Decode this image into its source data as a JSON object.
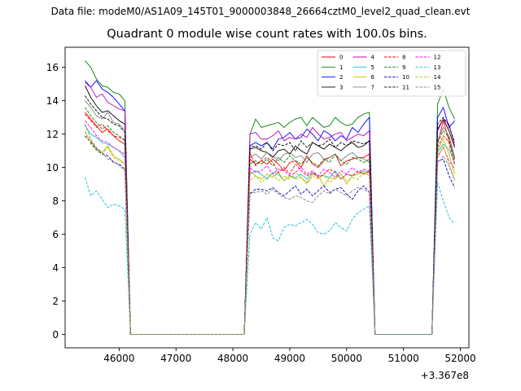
{
  "header": {
    "suptitle": "Data file: modeM0/AS1A09_145T01_9000003848_26664cztM0_level2_quad_clean.evt"
  },
  "chart_data": {
    "type": "line",
    "title": "Quadrant 0 module wise count rates with 100.0s bins.",
    "xlabel": "",
    "ylabel": "",
    "x_offset_label": "+3.367e8",
    "xlim": [
      45050,
      52150
    ],
    "ylim": [
      -0.8,
      17.2
    ],
    "xticks": [
      46000,
      47000,
      48000,
      49000,
      50000,
      51000,
      52000
    ],
    "yticks": [
      0,
      2,
      4,
      6,
      8,
      10,
      12,
      14,
      16
    ],
    "grid": false,
    "legend": {
      "placement": "top-right",
      "columns": 4
    },
    "segments": [
      {
        "x0": 45400,
        "x1": 46100
      },
      {
        "x0": 48300,
        "x1": 50400
      },
      {
        "x0": 51600,
        "x1": 51900
      }
    ],
    "gap_x": [
      46200,
      46300,
      46400,
      46500,
      46600,
      46700,
      46800,
      46900,
      47000,
      47100,
      47200,
      47300,
      47400,
      47500,
      47600,
      47700,
      47800,
      47900,
      48000,
      48100,
      48200,
      50500,
      50600,
      50700,
      50800,
      50900,
      51000,
      51100,
      51200,
      51300,
      51400,
      51500
    ],
    "series": [
      {
        "name": "0",
        "color": "#ff0000",
        "dash": "solid",
        "seg_values": [
          [
            13.3,
            12.9,
            12.5,
            12.1,
            12.3,
            11.9,
            11.6,
            11.4
          ],
          [
            10.5,
            10.2,
            10.4,
            10.2,
            10.5,
            10.2,
            9.8,
            10.3,
            10.4,
            10.0,
            10.7,
            10.2,
            10.0,
            10.4,
            10.6,
            10.8,
            10.1,
            10.4,
            10.5,
            10.6,
            10.6,
            10.8
          ],
          [
            11.4,
            12.8,
            11.6,
            10.5
          ]
        ]
      },
      {
        "name": "1",
        "color": "#008000",
        "dash": "solid",
        "seg_values": [
          [
            16.4,
            16.0,
            15.3,
            14.9,
            14.8,
            14.5,
            14.4,
            14.0
          ],
          [
            12.0,
            12.9,
            12.4,
            12.5,
            12.6,
            12.7,
            12.4,
            12.7,
            12.9,
            13.0,
            12.5,
            13.0,
            12.7,
            12.4,
            12.5,
            13.0,
            12.7,
            12.5,
            12.6,
            13.0,
            13.2,
            13.3
          ],
          [
            13.8,
            14.7,
            13.6,
            12.9
          ]
        ]
      },
      {
        "name": "2",
        "color": "#0000ff",
        "dash": "solid",
        "seg_values": [
          [
            15.2,
            14.8,
            15.2,
            14.7,
            14.5,
            14.2,
            13.8,
            13.4
          ],
          [
            11.3,
            11.5,
            11.3,
            11.5,
            11.1,
            11.7,
            11.8,
            12.1,
            11.7,
            11.8,
            12.3,
            12.0,
            11.6,
            12.2,
            12.0,
            11.6,
            11.9,
            11.7,
            12.4,
            12.1,
            12.6,
            13.0
          ],
          [
            13.0,
            13.6,
            12.4,
            12.8
          ]
        ]
      },
      {
        "name": "3",
        "color": "#000000",
        "dash": "solid",
        "seg_values": [
          [
            14.9,
            14.2,
            13.7,
            13.3,
            13.4,
            13.1,
            12.8,
            12.6
          ],
          [
            11.1,
            11.2,
            11.0,
            10.9,
            10.6,
            11.0,
            11.1,
            10.8,
            11.3,
            11.0,
            10.8,
            11.5,
            11.3,
            11.1,
            11.4,
            11.2,
            11.0,
            11.3,
            11.5,
            11.2,
            11.3,
            11.6
          ],
          [
            12.3,
            12.9,
            12.2,
            11.2
          ]
        ]
      },
      {
        "name": "4",
        "color": "#bf00bf",
        "dash": "solid",
        "seg_values": [
          [
            15.1,
            14.8,
            14.2,
            14.4,
            13.9,
            13.7,
            13.5,
            13.4
          ],
          [
            12.0,
            12.1,
            11.7,
            11.7,
            11.9,
            12.2,
            11.6,
            11.8,
            11.7,
            12.0,
            11.8,
            12.4,
            12.0,
            11.7,
            11.8,
            12.0,
            12.1,
            11.6,
            11.8,
            12.0,
            11.9,
            12.2
          ],
          [
            12.2,
            12.9,
            12.6,
            11.3
          ]
        ]
      },
      {
        "name": "5",
        "color": "#17becf",
        "dash": "solid",
        "seg_values": [
          [
            12.5,
            12.0,
            11.8,
            11.5,
            11.4,
            11.2,
            11.0,
            10.6
          ],
          [
            9.6,
            9.8,
            9.6,
            9.3,
            9.7,
            9.6,
            9.2,
            9.5,
            9.4,
            9.6,
            9.3,
            9.7,
            9.5,
            9.5,
            9.4,
            9.8,
            9.3,
            9.6,
            9.5,
            9.6,
            9.8,
            9.7
          ],
          [
            10.9,
            11.4,
            11.1,
            10.3
          ]
        ]
      },
      {
        "name": "6",
        "color": "#bfbf00",
        "dash": "solid",
        "seg_values": [
          [
            12.1,
            11.6,
            11.1,
            10.9,
            11.3,
            10.7,
            10.5,
            10.2
          ],
          [
            9.8,
            9.5,
            9.3,
            9.6,
            9.4,
            9.7,
            9.2,
            9.5,
            9.3,
            9.4,
            9.1,
            9.6,
            9.5,
            8.9,
            9.4,
            9.3,
            9.6,
            9.0,
            9.5,
            9.6,
            9.7,
            9.5
          ],
          [
            11.0,
            11.7,
            10.8,
            9.6
          ]
        ]
      },
      {
        "name": "7",
        "color": "#808080",
        "dash": "solid",
        "seg_values": [
          [
            14.0,
            13.6,
            13.1,
            12.9,
            13.3,
            12.7,
            12.6,
            12.2
          ],
          [
            10.6,
            10.8,
            10.5,
            10.9,
            10.7,
            10.4,
            10.8,
            10.9,
            10.6,
            10.7,
            10.3,
            10.8,
            10.9,
            10.5,
            10.6,
            10.8,
            10.4,
            10.7,
            10.9,
            10.6,
            10.5,
            10.3
          ],
          [
            11.6,
            12.4,
            11.9,
            10.6
          ]
        ]
      },
      {
        "name": "8",
        "color": "#ff0000",
        "dash": "dashed",
        "seg_values": [
          [
            13.2,
            12.8,
            12.4,
            12.6,
            12.2,
            11.9,
            11.8,
            11.7
          ],
          [
            10.9,
            10.1,
            10.4,
            10.6,
            10.3,
            9.7,
            10.0,
            9.6,
            10.2,
            9.8,
            9.5,
            9.7,
            9.4,
            9.6,
            9.9,
            9.7,
            9.3,
            9.6,
            9.5,
            9.8,
            9.6,
            9.8
          ],
          [
            11.2,
            11.9,
            11.5,
            10.1
          ]
        ]
      },
      {
        "name": "9",
        "color": "#008000",
        "dash": "dashed",
        "seg_values": [
          [
            13.6,
            13.1,
            12.7,
            12.3,
            12.5,
            12.1,
            11.9,
            11.6
          ],
          [
            10.2,
            10.4,
            10.2,
            10.5,
            10.1,
            10.6,
            10.3,
            10.7,
            10.4,
            10.2,
            10.6,
            10.3,
            10.1,
            10.5,
            10.3,
            10.8,
            10.4,
            10.2,
            10.6,
            10.5,
            10.3,
            10.5
          ],
          [
            11.5,
            12.2,
            11.8,
            10.4
          ]
        ]
      },
      {
        "name": "10",
        "color": "#0000bf",
        "dash": "dashed",
        "seg_values": [
          [
            11.9,
            11.5,
            11.1,
            10.8,
            10.7,
            10.3,
            10.2,
            9.9
          ],
          [
            8.4,
            8.7,
            8.7,
            8.6,
            8.8,
            8.5,
            8.3,
            8.6,
            8.9,
            8.4,
            8.7,
            8.3,
            8.6,
            8.9,
            8.5,
            8.7,
            8.8,
            8.4,
            8.1,
            8.6,
            8.9,
            8.5
          ],
          [
            10.4,
            10.5,
            9.5,
            8.8
          ]
        ]
      },
      {
        "name": "11",
        "color": "#000000",
        "dash": "dashed",
        "seg_values": [
          [
            14.3,
            13.8,
            13.4,
            13.0,
            12.9,
            12.6,
            12.5,
            12.1
          ],
          [
            11.2,
            11.3,
            11.1,
            11.5,
            11.0,
            11.4,
            11.3,
            11.5,
            11.0,
            11.6,
            11.2,
            11.5,
            11.3,
            11.4,
            11.7,
            11.2,
            11.5,
            11.3,
            11.6,
            11.5,
            11.4,
            11.6
          ],
          [
            12.6,
            13.0,
            12.5,
            11.5
          ]
        ]
      },
      {
        "name": "12",
        "color": "#ff00ff",
        "dash": "dashed",
        "seg_values": [
          [
            12.8,
            12.4,
            11.9,
            11.6,
            11.5,
            11.2,
            11.0,
            10.8
          ],
          [
            10.0,
            9.7,
            9.8,
            10.1,
            9.6,
            9.9,
            9.8,
            9.5,
            9.7,
            10.0,
            9.6,
            9.8,
            9.5,
            9.9,
            9.7,
            9.4,
            9.8,
            9.6,
            10.0,
            9.7,
            9.9,
            9.8
          ],
          [
            10.7,
            11.2,
            10.4,
            9.9
          ]
        ]
      },
      {
        "name": "13",
        "color": "#17becf",
        "dash": "dashed",
        "seg_values": [
          [
            9.4,
            8.3,
            8.6,
            8.1,
            7.6,
            7.8,
            7.7,
            7.5
          ],
          [
            6.0,
            6.7,
            6.3,
            7.0,
            5.8,
            5.6,
            6.4,
            6.6,
            6.5,
            6.7,
            6.9,
            6.6,
            6.1,
            6.0,
            6.2,
            6.7,
            6.4,
            6.2,
            6.9,
            7.3,
            7.5,
            7.7
          ],
          [
            9.1,
            8.0,
            7.0,
            6.6
          ]
        ]
      },
      {
        "name": "14",
        "color": "#bfbf00",
        "dash": "dashed",
        "seg_values": [
          [
            12.2,
            11.4,
            11.0,
            10.8,
            11.2,
            10.6,
            10.4,
            10.2
          ],
          [
            9.2,
            9.5,
            9.1,
            9.4,
            9.6,
            9.2,
            9.5,
            9.3,
            9.7,
            9.4,
            9.0,
            9.5,
            9.3,
            9.6,
            9.1,
            9.4,
            9.6,
            9.2,
            9.4,
            9.3,
            9.7,
            9.6
          ],
          [
            10.5,
            11.3,
            10.2,
            9.3
          ]
        ]
      },
      {
        "name": "15",
        "color": "#808080",
        "dash": "dashed",
        "seg_values": [
          [
            12.6,
            11.7,
            11.2,
            10.9,
            10.5,
            10.4,
            10.1,
            9.8
          ],
          [
            8.5,
            8.5,
            8.6,
            8.4,
            8.7,
            8.4,
            8.2,
            8.1,
            8.3,
            8.2,
            8.0,
            7.9,
            8.3,
            8.6,
            8.4,
            8.7,
            8.5,
            8.3,
            8.6,
            8.8,
            8.7,
            8.5
          ],
          [
            10.2,
            10.7,
            10.1,
            9.2
          ]
        ]
      }
    ]
  }
}
